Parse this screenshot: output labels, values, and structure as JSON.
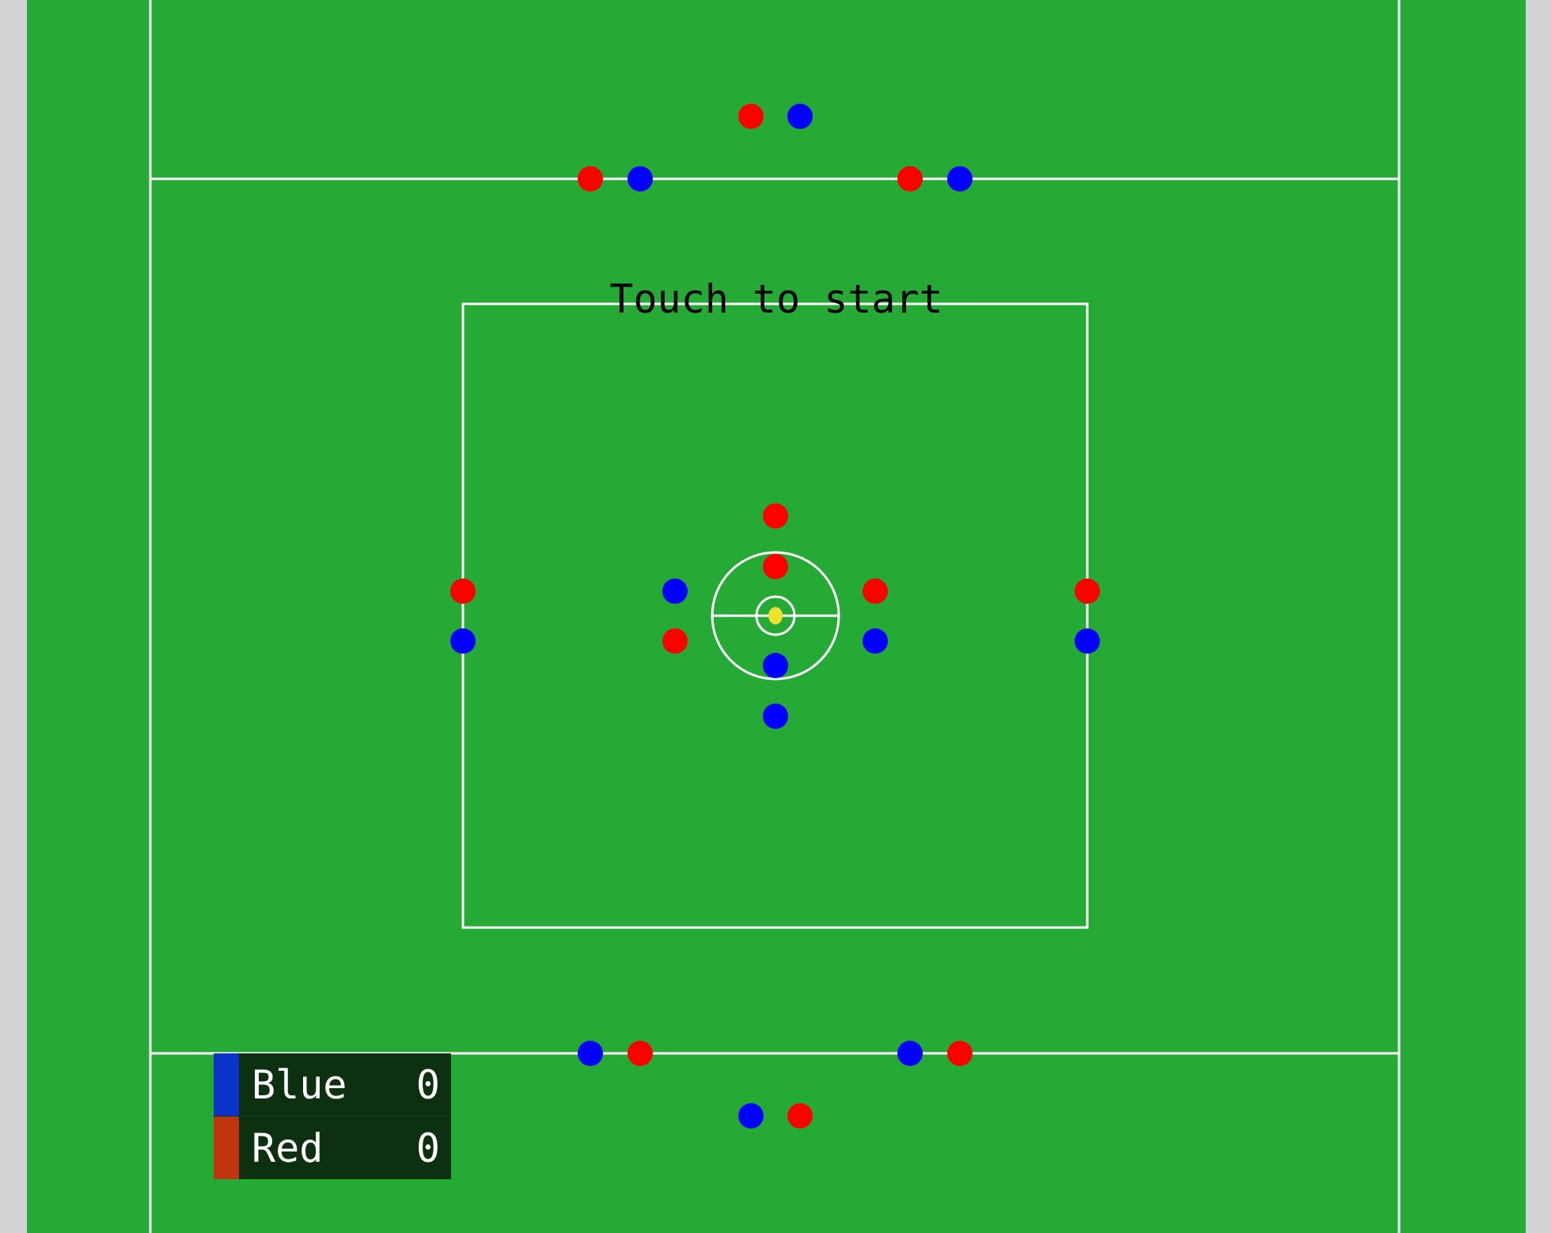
{
  "game": {
    "prompt": "Touch to start",
    "field_color": "#25aa35",
    "line_color": "#ffffff",
    "ball_color": "#f0e030"
  },
  "teams": {
    "blue": {
      "name": "Blue",
      "score": "0",
      "player_color": "#0000ff",
      "swatch_color": "#0b33c8"
    },
    "red": {
      "name": "Red",
      "score": "0",
      "player_color": "#ff0000",
      "swatch_color": "#c03510"
    }
  },
  "players_on_field": {
    "red": 12,
    "blue": 12
  }
}
